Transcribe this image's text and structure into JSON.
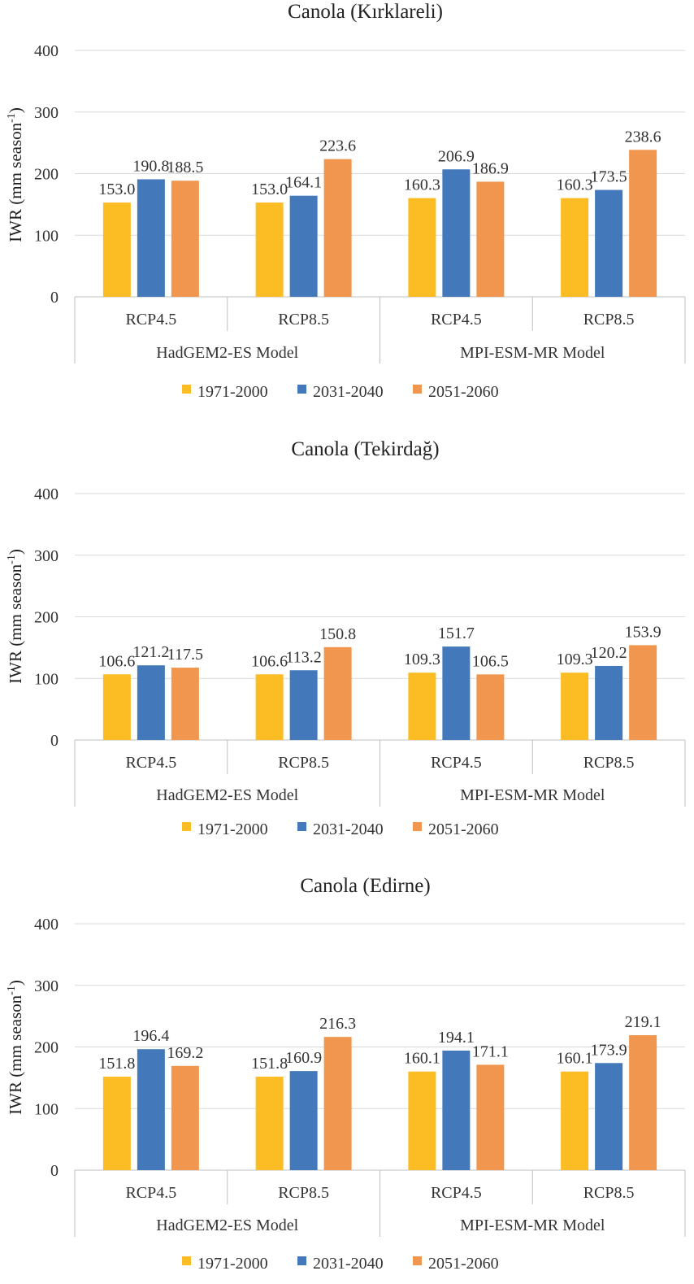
{
  "chart_data": [
    {
      "type": "bar",
      "title": "Canola (Kırklareli)",
      "ylabel": "IWR (mm season",
      "ylabel_sup": "-1",
      "ylabel_close": ")",
      "ylim": [
        0,
        400
      ],
      "yticks": [
        0,
        100,
        200,
        300,
        400
      ],
      "groups": [
        "HadGEM2-ES Model",
        "MPI-ESM-MR Model"
      ],
      "categories": [
        "RCP4.5",
        "RCP8.5",
        "RCP4.5",
        "RCP8.5"
      ],
      "series": [
        {
          "name": "1971-2000",
          "color": "#fbbc24",
          "values": [
            153.0,
            153.0,
            160.3,
            160.3
          ],
          "labels": [
            "153.0",
            "153.0",
            "160.3",
            "160.3"
          ]
        },
        {
          "name": "2031-2040",
          "color": "#4379ba",
          "values": [
            190.8,
            164.1,
            206.9,
            173.5
          ],
          "labels": [
            "190.8",
            "164.1",
            "206.9",
            "173.5"
          ]
        },
        {
          "name": "2051-2060",
          "color": "#f0964f",
          "values": [
            188.5,
            223.6,
            186.9,
            238.6
          ],
          "labels": [
            "188.5",
            "223.6",
            "186.9",
            "238.6"
          ]
        }
      ]
    },
    {
      "type": "bar",
      "title": "Canola (Tekirdağ)",
      "ylabel": "IWR (mm season",
      "ylabel_sup": "-1",
      "ylabel_close": ")",
      "ylim": [
        0,
        400
      ],
      "yticks": [
        0,
        100,
        200,
        300,
        400
      ],
      "groups": [
        "HadGEM2-ES Model",
        "MPI-ESM-MR Model"
      ],
      "categories": [
        "RCP4.5",
        "RCP8.5",
        "RCP4.5",
        "RCP8.5"
      ],
      "series": [
        {
          "name": "1971-2000",
          "color": "#fbbc24",
          "values": [
            106.6,
            106.6,
            109.3,
            109.3
          ],
          "labels": [
            "106.6",
            "106.6",
            "109.3",
            "109.3"
          ]
        },
        {
          "name": "2031-2040",
          "color": "#4379ba",
          "values": [
            121.2,
            113.2,
            151.7,
            120.2
          ],
          "labels": [
            "121.2",
            "113.2",
            "151.7",
            "120.2"
          ]
        },
        {
          "name": "2051-2060",
          "color": "#f0964f",
          "values": [
            117.5,
            150.8,
            106.5,
            153.9
          ],
          "labels": [
            "117.5",
            "150.8",
            "106.5",
            "153.9"
          ]
        }
      ]
    },
    {
      "type": "bar",
      "title": "Canola (Edirne)",
      "ylabel": "IWR (mm season",
      "ylabel_sup": "-1",
      "ylabel_close": ")",
      "ylim": [
        0,
        400
      ],
      "yticks": [
        0,
        100,
        200,
        300,
        400
      ],
      "groups": [
        "HadGEM2-ES Model",
        "MPI-ESM-MR Model"
      ],
      "categories": [
        "RCP4.5",
        "RCP8.5",
        "RCP4.5",
        "RCP8.5"
      ],
      "series": [
        {
          "name": "1971-2000",
          "color": "#fbbc24",
          "values": [
            151.8,
            151.8,
            160.1,
            160.1
          ],
          "labels": [
            "151.8",
            "151.8",
            "160.1",
            "160.1"
          ]
        },
        {
          "name": "2031-2040",
          "color": "#4379ba",
          "values": [
            196.4,
            160.9,
            194.1,
            173.9
          ],
          "labels": [
            "196.4",
            "160.9",
            "194.1",
            "173.9"
          ]
        },
        {
          "name": "2051-2060",
          "color": "#f0964f",
          "values": [
            169.2,
            216.3,
            171.1,
            219.1
          ],
          "labels": [
            "169.2",
            "216.3",
            "171.1",
            "219.1"
          ]
        }
      ]
    }
  ]
}
